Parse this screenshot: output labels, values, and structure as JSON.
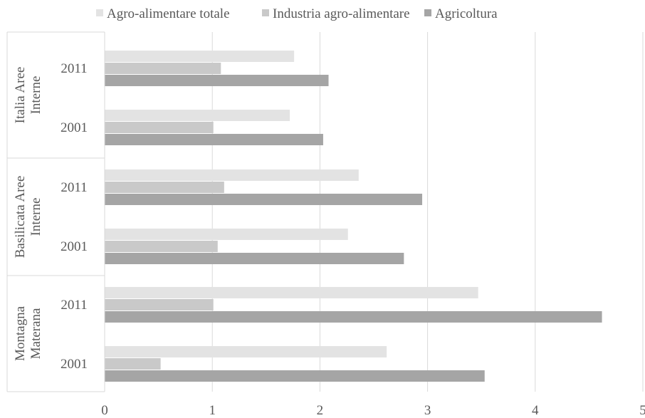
{
  "chart_data": {
    "type": "bar",
    "orientation": "horizontal",
    "groups": [
      {
        "label": "Italia Aree Interne",
        "lines": [
          "Italia Aree",
          "Interne"
        ],
        "years": [
          "2011",
          "2001"
        ]
      },
      {
        "label": "Basilicata Aree Interne",
        "lines": [
          "Basilicata Aree",
          "Interne"
        ],
        "years": [
          "2011",
          "2001"
        ]
      },
      {
        "label": "Montagna Materana",
        "lines": [
          "Montagna",
          "Materana"
        ],
        "years": [
          "2011",
          "2001"
        ]
      }
    ],
    "series": [
      {
        "name": "Agro-alimentare totale",
        "color": "#e3e3e3",
        "values": [
          1.76,
          1.72,
          2.36,
          2.26,
          3.47,
          2.62
        ]
      },
      {
        "name": "Industria agro-alimentare",
        "color": "#c9c9c9",
        "values": [
          1.08,
          1.01,
          1.11,
          1.05,
          1.01,
          0.52
        ]
      },
      {
        "name": "Agricoltura",
        "color": "#a5a5a5",
        "values": [
          2.08,
          2.03,
          2.95,
          2.78,
          4.62,
          3.53
        ]
      }
    ],
    "xlim": [
      0,
      5
    ],
    "xticks": [
      "0",
      "1",
      "2",
      "3",
      "4",
      "5"
    ],
    "grid": true,
    "legend_position": "top"
  }
}
